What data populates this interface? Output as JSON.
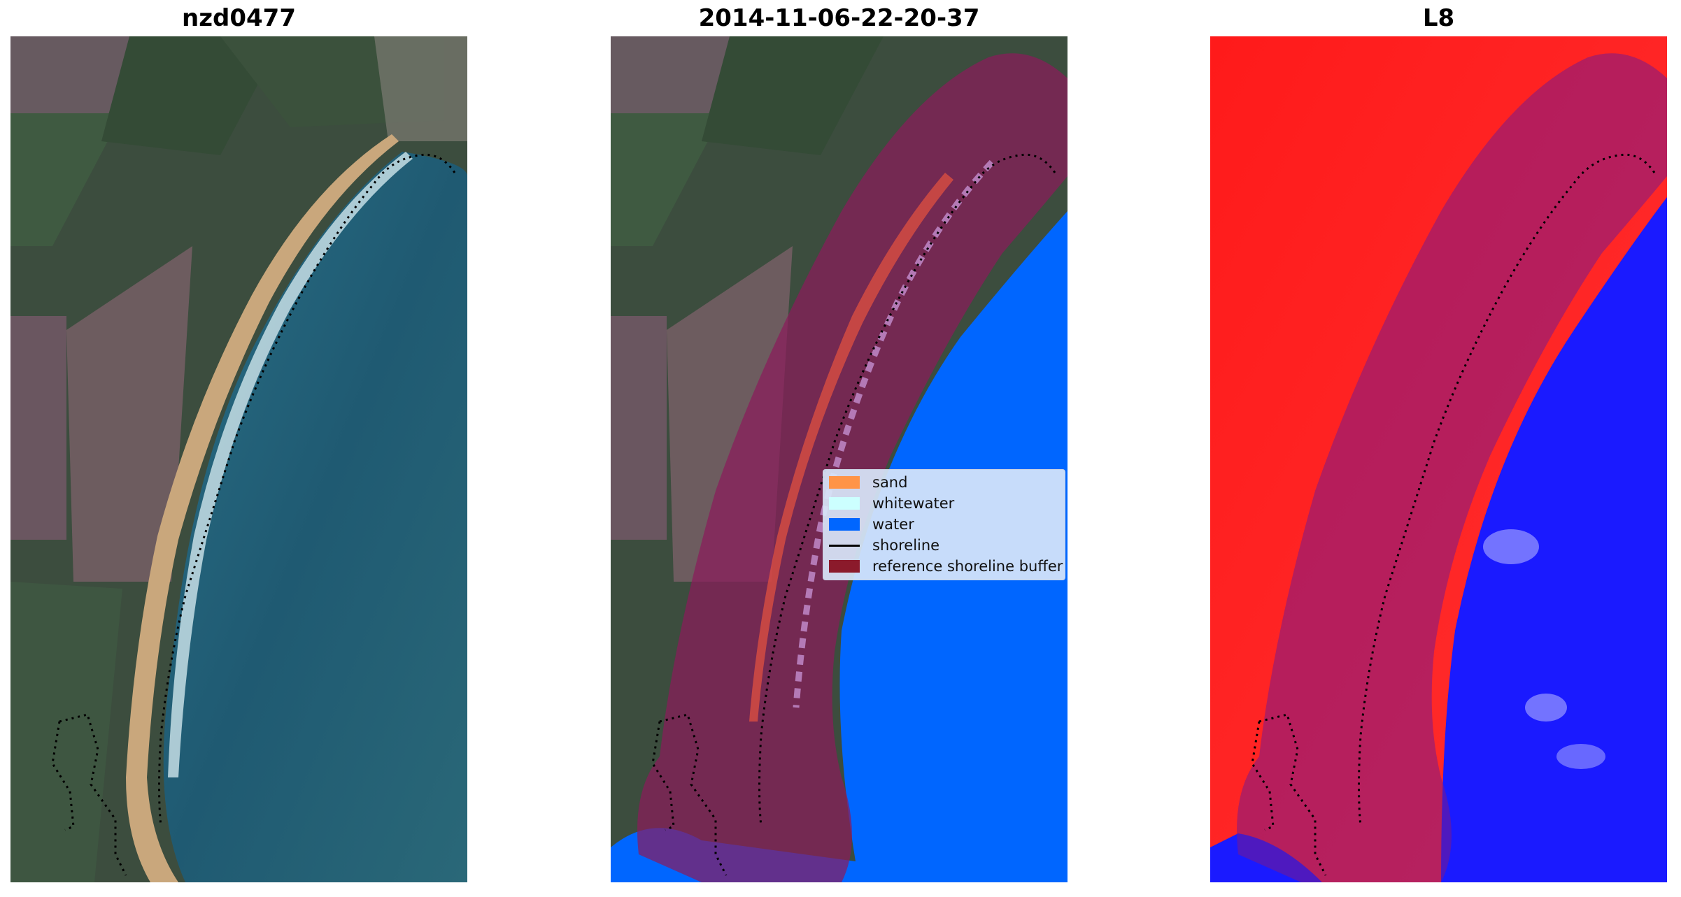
{
  "panels": [
    {
      "title": "nzd0477"
    },
    {
      "title": "2014-11-06-22-20-37"
    },
    {
      "title": "L8"
    }
  ],
  "legend": {
    "items": [
      {
        "label": "sand",
        "color": "#ff9447",
        "kind": "patch"
      },
      {
        "label": "whitewater",
        "color": "#ccffff",
        "kind": "patch"
      },
      {
        "label": "water",
        "color": "#0066ff",
        "kind": "patch"
      },
      {
        "label": "shoreline",
        "color": "#000000",
        "kind": "line"
      },
      {
        "label": "reference shoreline buffer",
        "color": "#8b1a2b",
        "kind": "patch"
      }
    ]
  },
  "colors": {
    "buffer": "#8b1a2b",
    "water": "#0066ff",
    "sand": "#ff9447",
    "whitewater": "#ccffff",
    "ndwi_land": "#ff1a1a",
    "ndwi_water": "#1a1aff"
  }
}
